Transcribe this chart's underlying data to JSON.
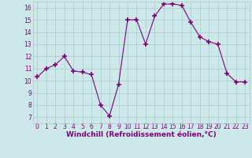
{
  "x": [
    0,
    1,
    2,
    3,
    4,
    5,
    6,
    7,
    8,
    9,
    10,
    11,
    12,
    13,
    14,
    15,
    16,
    17,
    18,
    19,
    20,
    21,
    22,
    23
  ],
  "y": [
    10.3,
    11.0,
    11.3,
    12.0,
    10.8,
    10.7,
    10.5,
    8.0,
    7.1,
    9.7,
    15.0,
    15.0,
    13.0,
    15.3,
    16.3,
    16.3,
    16.2,
    14.8,
    13.6,
    13.2,
    13.0,
    10.6,
    9.9,
    9.9
  ],
  "xlim": [
    -0.5,
    23.5
  ],
  "ylim": [
    6.5,
    16.5
  ],
  "yticks": [
    7,
    8,
    9,
    10,
    11,
    12,
    13,
    14,
    15,
    16
  ],
  "xticks": [
    0,
    1,
    2,
    3,
    4,
    5,
    6,
    7,
    8,
    9,
    10,
    11,
    12,
    13,
    14,
    15,
    16,
    17,
    18,
    19,
    20,
    21,
    22,
    23
  ],
  "xlabel": "Windchill (Refroidissement éolien,°C)",
  "line_color": "#800080",
  "marker": "+",
  "marker_size": 4,
  "background_color": "#cce8e8",
  "grid_color": "#aacccc",
  "label_color": "#800080",
  "tick_color": "#800080",
  "tick_fontsize": 5.5,
  "xlabel_fontsize": 6.5
}
